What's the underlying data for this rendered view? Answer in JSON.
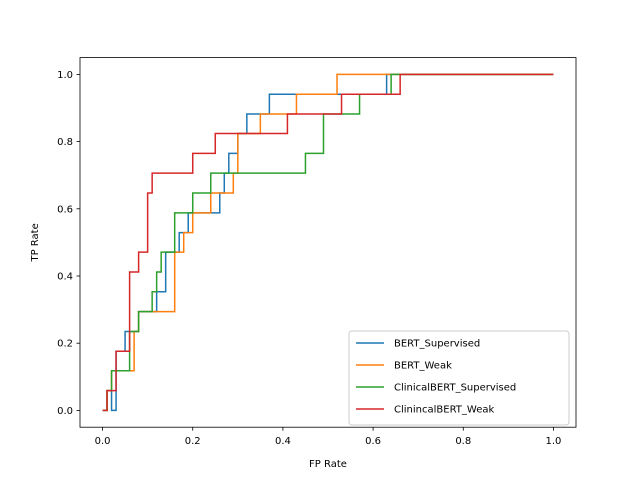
{
  "chart_data": {
    "type": "line",
    "xlabel": "FP Rate",
    "ylabel": "TP Rate",
    "xlim": [
      -0.05,
      1.05
    ],
    "ylim": [
      -0.05,
      1.05
    ],
    "x_ticks": [
      "0.0",
      "0.2",
      "0.4",
      "0.6",
      "0.8",
      "1.0"
    ],
    "y_ticks": [
      "0.0",
      "0.2",
      "0.4",
      "0.6",
      "0.8",
      "1.0"
    ],
    "legend_position": "lower right",
    "grid": false,
    "series": [
      {
        "name": "BERT_Supervised",
        "color": "#1f77b4",
        "step": true,
        "points": [
          [
            0,
            0
          ],
          [
            0.01,
            0
          ],
          [
            0.01,
            0.059
          ],
          [
            0.02,
            0.059
          ],
          [
            0.02,
            0
          ],
          [
            0.03,
            0
          ],
          [
            0.03,
            0.176
          ],
          [
            0.05,
            0.176
          ],
          [
            0.05,
            0.235
          ],
          [
            0.08,
            0.235
          ],
          [
            0.08,
            0.294
          ],
          [
            0.12,
            0.294
          ],
          [
            0.12,
            0.353
          ],
          [
            0.14,
            0.353
          ],
          [
            0.14,
            0.471
          ],
          [
            0.17,
            0.471
          ],
          [
            0.17,
            0.529
          ],
          [
            0.19,
            0.529
          ],
          [
            0.19,
            0.588
          ],
          [
            0.26,
            0.588
          ],
          [
            0.26,
            0.647
          ],
          [
            0.27,
            0.647
          ],
          [
            0.27,
            0.706
          ],
          [
            0.28,
            0.706
          ],
          [
            0.28,
            0.765
          ],
          [
            0.3,
            0.765
          ],
          [
            0.3,
            0.824
          ],
          [
            0.32,
            0.824
          ],
          [
            0.32,
            0.882
          ],
          [
            0.35,
            0.882
          ],
          [
            0.35,
            0.882
          ],
          [
            0.37,
            0.882
          ],
          [
            0.37,
            0.941
          ],
          [
            0.63,
            0.941
          ],
          [
            0.63,
            1.0
          ],
          [
            0.65,
            1.0
          ],
          [
            1.0,
            1.0
          ]
        ]
      },
      {
        "name": "BERT_Weak",
        "color": "#ff7f0e",
        "step": true,
        "points": [
          [
            0,
            0
          ],
          [
            0.01,
            0
          ],
          [
            0.01,
            0.059
          ],
          [
            0.02,
            0.059
          ],
          [
            0.02,
            0.118
          ],
          [
            0.07,
            0.118
          ],
          [
            0.07,
            0.235
          ],
          [
            0.08,
            0.235
          ],
          [
            0.08,
            0.294
          ],
          [
            0.16,
            0.294
          ],
          [
            0.16,
            0.471
          ],
          [
            0.18,
            0.471
          ],
          [
            0.18,
            0.529
          ],
          [
            0.2,
            0.529
          ],
          [
            0.2,
            0.588
          ],
          [
            0.24,
            0.588
          ],
          [
            0.24,
            0.647
          ],
          [
            0.29,
            0.647
          ],
          [
            0.29,
            0.706
          ],
          [
            0.3,
            0.706
          ],
          [
            0.3,
            0.824
          ],
          [
            0.35,
            0.824
          ],
          [
            0.35,
            0.882
          ],
          [
            0.43,
            0.882
          ],
          [
            0.43,
            0.941
          ],
          [
            0.52,
            0.941
          ],
          [
            0.52,
            1.0
          ],
          [
            1.0,
            1.0
          ]
        ]
      },
      {
        "name": "ClinicalBERT_Supervised",
        "color": "#2ca02c",
        "step": true,
        "points": [
          [
            0,
            0
          ],
          [
            0.01,
            0
          ],
          [
            0.01,
            0.059
          ],
          [
            0.02,
            0.059
          ],
          [
            0.02,
            0.118
          ],
          [
            0.06,
            0.118
          ],
          [
            0.06,
            0.235
          ],
          [
            0.08,
            0.235
          ],
          [
            0.08,
            0.294
          ],
          [
            0.11,
            0.294
          ],
          [
            0.11,
            0.353
          ],
          [
            0.12,
            0.353
          ],
          [
            0.12,
            0.412
          ],
          [
            0.13,
            0.412
          ],
          [
            0.13,
            0.471
          ],
          [
            0.16,
            0.471
          ],
          [
            0.16,
            0.588
          ],
          [
            0.2,
            0.588
          ],
          [
            0.2,
            0.647
          ],
          [
            0.24,
            0.647
          ],
          [
            0.24,
            0.706
          ],
          [
            0.45,
            0.706
          ],
          [
            0.45,
            0.765
          ],
          [
            0.49,
            0.765
          ],
          [
            0.49,
            0.882
          ],
          [
            0.57,
            0.882
          ],
          [
            0.57,
            0.941
          ],
          [
            0.64,
            0.941
          ],
          [
            0.64,
            1.0
          ],
          [
            1.0,
            1.0
          ]
        ]
      },
      {
        "name": "ClinincalBERT_Weak",
        "color": "#d62728",
        "step": true,
        "points": [
          [
            0,
            0
          ],
          [
            0.01,
            0
          ],
          [
            0.01,
            0.059
          ],
          [
            0.03,
            0.059
          ],
          [
            0.03,
            0.176
          ],
          [
            0.06,
            0.176
          ],
          [
            0.06,
            0.412
          ],
          [
            0.08,
            0.412
          ],
          [
            0.08,
            0.471
          ],
          [
            0.1,
            0.471
          ],
          [
            0.1,
            0.647
          ],
          [
            0.11,
            0.647
          ],
          [
            0.11,
            0.706
          ],
          [
            0.2,
            0.706
          ],
          [
            0.2,
            0.765
          ],
          [
            0.25,
            0.765
          ],
          [
            0.25,
            0.824
          ],
          [
            0.41,
            0.824
          ],
          [
            0.41,
            0.882
          ],
          [
            0.53,
            0.882
          ],
          [
            0.53,
            0.941
          ],
          [
            0.66,
            0.941
          ],
          [
            0.66,
            1.0
          ],
          [
            1.0,
            1.0
          ]
        ]
      }
    ]
  }
}
